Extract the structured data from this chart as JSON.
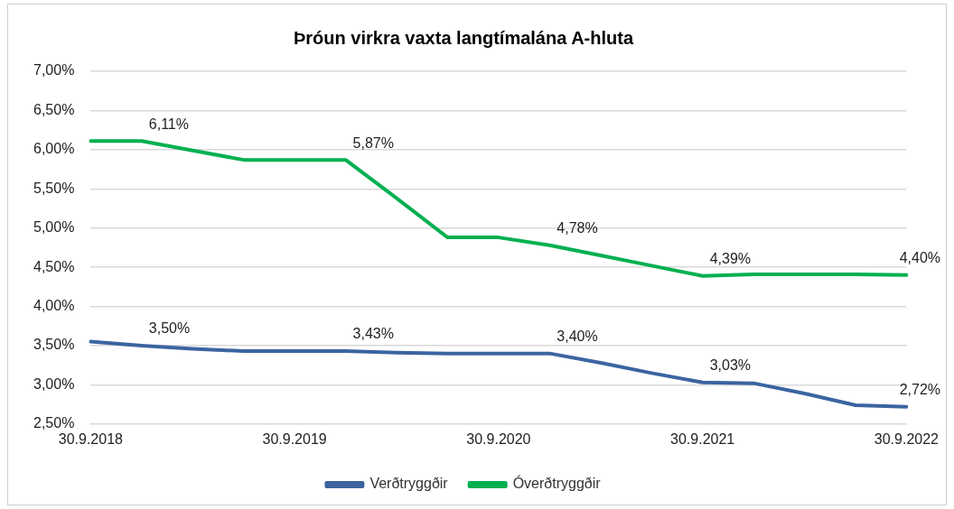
{
  "chart_data": {
    "type": "line",
    "title": "Þróun virkra vaxta langtímalána A-hluta",
    "categories": [
      "30.9.2018",
      null,
      null,
      null,
      "30.9.2019",
      null,
      null,
      null,
      "30.9.2020",
      null,
      null,
      null,
      "30.9.2021",
      null,
      null,
      null,
      "30.9.2022"
    ],
    "series": [
      {
        "name": "Verðtryggðir",
        "color": "#3b64a0",
        "values": [
          3.55,
          3.5,
          3.46,
          3.43,
          3.43,
          3.43,
          3.41,
          3.4,
          3.4,
          3.4,
          3.28,
          3.15,
          3.03,
          3.02,
          2.89,
          2.74,
          2.72
        ],
        "value_labels": [
          null,
          "3,50%",
          null,
          null,
          null,
          "3,43%",
          null,
          null,
          null,
          "3,40%",
          null,
          null,
          "3,03%",
          null,
          null,
          null,
          "2,72%"
        ]
      },
      {
        "name": "Óverðtryggðir",
        "color": "#00b050",
        "values": [
          6.11,
          6.11,
          5.99,
          5.87,
          5.87,
          5.87,
          5.38,
          4.88,
          4.88,
          4.78,
          4.65,
          4.52,
          4.39,
          4.41,
          4.41,
          4.41,
          4.4
        ],
        "value_labels": [
          null,
          "6,11%",
          null,
          null,
          null,
          "5,87%",
          null,
          null,
          null,
          "4,78%",
          null,
          null,
          "4,39%",
          null,
          null,
          null,
          "4,40%"
        ]
      }
    ],
    "ylim": [
      2.5,
      7
    ],
    "yticks": [
      {
        "value": 2.5,
        "label": "2,50%"
      },
      {
        "value": 3,
        "label": "3,00%"
      },
      {
        "value": 3.5,
        "label": "3,50%"
      },
      {
        "value": 4,
        "label": "4,00%"
      },
      {
        "value": 4.5,
        "label": "4,50%"
      },
      {
        "value": 5,
        "label": "5,00%"
      },
      {
        "value": 5.5,
        "label": "5,50%"
      },
      {
        "value": 6,
        "label": "6,00%"
      },
      {
        "value": 6.5,
        "label": "6,50%"
      },
      {
        "value": 7,
        "label": "7,00%"
      }
    ],
    "grid": "y",
    "legend": "bottom",
    "marker": "none",
    "line_style": "solid"
  }
}
